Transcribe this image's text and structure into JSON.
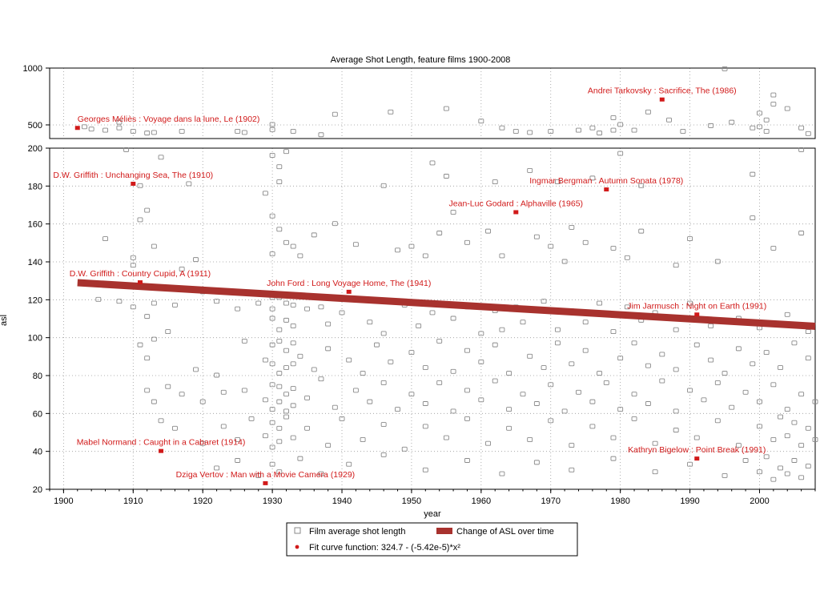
{
  "chart_data": {
    "type": "scatter",
    "title": "Average Shot Length, feature films 1900-2008",
    "xlabel": "year",
    "ylabel": "asl",
    "xlim": [
      1898,
      2008
    ],
    "panels": {
      "top": {
        "ylim": [
          380,
          1000
        ],
        "yticks": [
          500,
          1000
        ]
      },
      "bottom": {
        "ylim": [
          20,
          200
        ],
        "yticks": [
          20,
          40,
          60,
          80,
          100,
          120,
          140,
          160,
          180,
          200
        ]
      }
    },
    "xticks": [
      1900,
      1910,
      1920,
      1930,
      1940,
      1950,
      1960,
      1970,
      1980,
      1990,
      2000
    ],
    "grid": true,
    "colors": {
      "points": "#8a8a8a",
      "highlight": "#d11a1a",
      "trend": "#a8322e"
    },
    "trend_line": {
      "name": "Change of ASL over time",
      "points": [
        [
          1902,
          129
        ],
        [
          2008,
          106
        ]
      ]
    },
    "highlighted_films": [
      {
        "label": "Georges Méliès : Voyage dans la lune, Le (1902)",
        "year": 1902,
        "asl": 470
      },
      {
        "label": "D.W. Griffith : Unchanging Sea, The (1910)",
        "year": 1910,
        "asl": 181
      },
      {
        "label": "D.W. Griffith : Country Cupid, A (1911)",
        "year": 1911,
        "asl": 129
      },
      {
        "label": "Mabel Normand : Caught in a Cabaret (1914)",
        "year": 1914,
        "asl": 40
      },
      {
        "label": "Dziga Vertov : Man with a Movie Camera (1929)",
        "year": 1929,
        "asl": 23
      },
      {
        "label": "John Ford : Long Voyage Home, The (1941)",
        "year": 1941,
        "asl": 124
      },
      {
        "label": "Jean-Luc Godard : Alphaville (1965)",
        "year": 1965,
        "asl": 166
      },
      {
        "label": "Ingmar Bergman : Autumn Sonata (1978)",
        "year": 1978,
        "asl": 178
      },
      {
        "label": "Andrei Tarkovsky : Sacrifice, The (1986)",
        "year": 1986,
        "asl": 720
      },
      {
        "label": "Jim Jarmusch : Night on Earth (1991)",
        "year": 1991,
        "asl": 112
      },
      {
        "label": "Kathryn Bigelow : Point Break (1991)",
        "year": 1991,
        "asl": 36
      }
    ],
    "legend": {
      "position": "bottom",
      "items": [
        {
          "label": "Film average shot length",
          "marker": "square"
        },
        {
          "label": "Change of ASL over time",
          "marker": "bar"
        },
        {
          "label": "Fit curve function: 324.7 - (-5.42e-5)*x²",
          "marker": "dot"
        }
      ]
    },
    "scatter_points": [
      [
        1903,
        480
      ],
      [
        1904,
        460
      ],
      [
        1906,
        450
      ],
      [
        1908,
        470
      ],
      [
        1908,
        520
      ],
      [
        1910,
        440
      ],
      [
        1912,
        425
      ],
      [
        1913,
        430
      ],
      [
        1917,
        440
      ],
      [
        1925,
        440
      ],
      [
        1926,
        430
      ],
      [
        1930,
        500
      ],
      [
        1930,
        455
      ],
      [
        1933,
        440
      ],
      [
        1937,
        410
      ],
      [
        1939,
        590
      ],
      [
        1947,
        610
      ],
      [
        1955,
        640
      ],
      [
        1960,
        530
      ],
      [
        1963,
        470
      ],
      [
        1965,
        440
      ],
      [
        1967,
        430
      ],
      [
        1970,
        440
      ],
      [
        1974,
        450
      ],
      [
        1976,
        470
      ],
      [
        1977,
        425
      ],
      [
        1979,
        560
      ],
      [
        1979,
        450
      ],
      [
        1980,
        500
      ],
      [
        1982,
        450
      ],
      [
        1984,
        610
      ],
      [
        1987,
        540
      ],
      [
        1989,
        440
      ],
      [
        1993,
        490
      ],
      [
        1995,
        990
      ],
      [
        1996,
        520
      ],
      [
        1999,
        470
      ],
      [
        2000,
        480
      ],
      [
        2000,
        600
      ],
      [
        2001,
        440
      ],
      [
        2001,
        540
      ],
      [
        2002,
        760
      ],
      [
        2002,
        680
      ],
      [
        2004,
        640
      ],
      [
        2006,
        470
      ],
      [
        2007,
        420
      ],
      [
        1909,
        199
      ],
      [
        1911,
        180
      ],
      [
        1914,
        195
      ],
      [
        1918,
        181
      ],
      [
        1930,
        196
      ],
      [
        1931,
        190
      ],
      [
        1932,
        198
      ],
      [
        1931,
        182
      ],
      [
        1946,
        180
      ],
      [
        1953,
        192
      ],
      [
        1955,
        185
      ],
      [
        1962,
        182
      ],
      [
        1967,
        188
      ],
      [
        1971,
        182
      ],
      [
        1976,
        184
      ],
      [
        1980,
        197
      ],
      [
        1983,
        180
      ],
      [
        1999,
        186
      ],
      [
        2006,
        199
      ],
      [
        1906,
        152
      ],
      [
        1910,
        142
      ],
      [
        1910,
        138
      ],
      [
        1911,
        162
      ],
      [
        1912,
        167
      ],
      [
        1913,
        148
      ],
      [
        1917,
        136
      ],
      [
        1919,
        141
      ],
      [
        1929,
        176
      ],
      [
        1930,
        164
      ],
      [
        1930,
        144
      ],
      [
        1931,
        157
      ],
      [
        1932,
        150
      ],
      [
        1933,
        148
      ],
      [
        1934,
        143
      ],
      [
        1936,
        154
      ],
      [
        1939,
        160
      ],
      [
        1942,
        149
      ],
      [
        1948,
        146
      ],
      [
        1950,
        148
      ],
      [
        1952,
        143
      ],
      [
        1954,
        155
      ],
      [
        1956,
        166
      ],
      [
        1958,
        150
      ],
      [
        1961,
        156
      ],
      [
        1963,
        143
      ],
      [
        1968,
        153
      ],
      [
        1970,
        148
      ],
      [
        1972,
        140
      ],
      [
        1973,
        158
      ],
      [
        1975,
        150
      ],
      [
        1979,
        147
      ],
      [
        1981,
        142
      ],
      [
        1983,
        156
      ],
      [
        1988,
        138
      ],
      [
        1990,
        152
      ],
      [
        1994,
        140
      ],
      [
        1999,
        163
      ],
      [
        2002,
        147
      ],
      [
        2006,
        155
      ],
      [
        1905,
        120
      ],
      [
        1908,
        119
      ],
      [
        1910,
        116
      ],
      [
        1912,
        111
      ],
      [
        1913,
        118
      ],
      [
        1915,
        103
      ],
      [
        1916,
        117
      ],
      [
        1918,
        125
      ],
      [
        1920,
        124
      ],
      [
        1922,
        119
      ],
      [
        1925,
        115
      ],
      [
        1928,
        118
      ],
      [
        1930,
        121
      ],
      [
        1930,
        115
      ],
      [
        1930,
        110
      ],
      [
        1931,
        121
      ],
      [
        1931,
        104
      ],
      [
        1932,
        118
      ],
      [
        1932,
        109
      ],
      [
        1933,
        117
      ],
      [
        1933,
        106
      ],
      [
        1935,
        115
      ],
      [
        1937,
        116
      ],
      [
        1938,
        107
      ],
      [
        1940,
        113
      ],
      [
        1944,
        108
      ],
      [
        1946,
        102
      ],
      [
        1949,
        117
      ],
      [
        1951,
        106
      ],
      [
        1953,
        113
      ],
      [
        1956,
        110
      ],
      [
        1958,
        116
      ],
      [
        1960,
        102
      ],
      [
        1962,
        114
      ],
      [
        1963,
        104
      ],
      [
        1965,
        116
      ],
      [
        1966,
        108
      ],
      [
        1969,
        119
      ],
      [
        1971,
        104
      ],
      [
        1973,
        114
      ],
      [
        1975,
        108
      ],
      [
        1977,
        118
      ],
      [
        1979,
        103
      ],
      [
        1981,
        116
      ],
      [
        1983,
        109
      ],
      [
        1985,
        113
      ],
      [
        1988,
        104
      ],
      [
        1990,
        118
      ],
      [
        1993,
        106
      ],
      [
        1997,
        110
      ],
      [
        2000,
        105
      ],
      [
        2004,
        112
      ],
      [
        2007,
        103
      ],
      [
        1911,
        96
      ],
      [
        1912,
        89
      ],
      [
        1913,
        99
      ],
      [
        1919,
        83
      ],
      [
        1922,
        80
      ],
      [
        1926,
        98
      ],
      [
        1929,
        88
      ],
      [
        1930,
        96
      ],
      [
        1930,
        86
      ],
      [
        1931,
        98
      ],
      [
        1931,
        81
      ],
      [
        1932,
        93
      ],
      [
        1932,
        84
      ],
      [
        1933,
        97
      ],
      [
        1933,
        86
      ],
      [
        1934,
        90
      ],
      [
        1936,
        83
      ],
      [
        1938,
        94
      ],
      [
        1941,
        88
      ],
      [
        1943,
        81
      ],
      [
        1945,
        96
      ],
      [
        1947,
        87
      ],
      [
        1950,
        92
      ],
      [
        1952,
        84
      ],
      [
        1954,
        98
      ],
      [
        1956,
        82
      ],
      [
        1958,
        93
      ],
      [
        1960,
        87
      ],
      [
        1962,
        96
      ],
      [
        1964,
        81
      ],
      [
        1967,
        90
      ],
      [
        1969,
        84
      ],
      [
        1971,
        97
      ],
      [
        1973,
        86
      ],
      [
        1975,
        93
      ],
      [
        1977,
        81
      ],
      [
        1980,
        89
      ],
      [
        1982,
        97
      ],
      [
        1984,
        85
      ],
      [
        1986,
        91
      ],
      [
        1988,
        83
      ],
      [
        1991,
        96
      ],
      [
        1993,
        88
      ],
      [
        1995,
        81
      ],
      [
        1997,
        94
      ],
      [
        1999,
        86
      ],
      [
        2001,
        92
      ],
      [
        2003,
        84
      ],
      [
        2005,
        97
      ],
      [
        2007,
        89
      ],
      [
        1912,
        72
      ],
      [
        1913,
        66
      ],
      [
        1915,
        74
      ],
      [
        1917,
        70
      ],
      [
        1920,
        66
      ],
      [
        1923,
        71
      ],
      [
        1926,
        72
      ],
      [
        1929,
        67
      ],
      [
        1930,
        75
      ],
      [
        1930,
        62
      ],
      [
        1931,
        74
      ],
      [
        1931,
        66
      ],
      [
        1932,
        70
      ],
      [
        1932,
        61
      ],
      [
        1933,
        73
      ],
      [
        1933,
        64
      ],
      [
        1935,
        68
      ],
      [
        1937,
        78
      ],
      [
        1939,
        63
      ],
      [
        1942,
        72
      ],
      [
        1944,
        66
      ],
      [
        1946,
        76
      ],
      [
        1948,
        62
      ],
      [
        1950,
        70
      ],
      [
        1952,
        65
      ],
      [
        1954,
        76
      ],
      [
        1956,
        61
      ],
      [
        1958,
        72
      ],
      [
        1960,
        67
      ],
      [
        1962,
        77
      ],
      [
        1964,
        62
      ],
      [
        1966,
        70
      ],
      [
        1968,
        65
      ],
      [
        1970,
        75
      ],
      [
        1972,
        61
      ],
      [
        1974,
        71
      ],
      [
        1976,
        66
      ],
      [
        1978,
        76
      ],
      [
        1980,
        62
      ],
      [
        1982,
        70
      ],
      [
        1984,
        65
      ],
      [
        1986,
        77
      ],
      [
        1988,
        61
      ],
      [
        1990,
        72
      ],
      [
        1992,
        67
      ],
      [
        1994,
        76
      ],
      [
        1996,
        63
      ],
      [
        1998,
        71
      ],
      [
        2000,
        66
      ],
      [
        2002,
        75
      ],
      [
        2004,
        62
      ],
      [
        2006,
        70
      ],
      [
        2008,
        66
      ],
      [
        1914,
        56
      ],
      [
        1916,
        52
      ],
      [
        1920,
        44
      ],
      [
        1923,
        53
      ],
      [
        1925,
        46
      ],
      [
        1927,
        57
      ],
      [
        1929,
        48
      ],
      [
        1930,
        55
      ],
      [
        1930,
        42
      ],
      [
        1931,
        52
      ],
      [
        1931,
        45
      ],
      [
        1932,
        58
      ],
      [
        1933,
        47
      ],
      [
        1935,
        52
      ],
      [
        1938,
        43
      ],
      [
        1940,
        57
      ],
      [
        1943,
        46
      ],
      [
        1946,
        54
      ],
      [
        1949,
        41
      ],
      [
        1952,
        53
      ],
      [
        1955,
        47
      ],
      [
        1958,
        57
      ],
      [
        1961,
        44
      ],
      [
        1964,
        52
      ],
      [
        1967,
        46
      ],
      [
        1970,
        56
      ],
      [
        1973,
        43
      ],
      [
        1976,
        53
      ],
      [
        1979,
        47
      ],
      [
        1982,
        57
      ],
      [
        1985,
        44
      ],
      [
        1988,
        51
      ],
      [
        1991,
        47
      ],
      [
        1994,
        56
      ],
      [
        1997,
        43
      ],
      [
        2000,
        53
      ],
      [
        2002,
        46
      ],
      [
        2003,
        58
      ],
      [
        2004,
        48
      ],
      [
        2005,
        55
      ],
      [
        2006,
        43
      ],
      [
        2007,
        52
      ],
      [
        2008,
        46
      ],
      [
        1922,
        31
      ],
      [
        1925,
        35
      ],
      [
        1928,
        27
      ],
      [
        1930,
        33
      ],
      [
        1931,
        29
      ],
      [
        1934,
        36
      ],
      [
        1937,
        28
      ],
      [
        1941,
        33
      ],
      [
        1946,
        38
      ],
      [
        1952,
        30
      ],
      [
        1958,
        35
      ],
      [
        1963,
        28
      ],
      [
        1968,
        34
      ],
      [
        1973,
        30
      ],
      [
        1979,
        36
      ],
      [
        1985,
        29
      ],
      [
        1990,
        33
      ],
      [
        1995,
        27
      ],
      [
        1998,
        35
      ],
      [
        2000,
        29
      ],
      [
        2001,
        37
      ],
      [
        2002,
        25
      ],
      [
        2003,
        31
      ],
      [
        2004,
        28
      ],
      [
        2005,
        35
      ],
      [
        2006,
        26
      ],
      [
        2007,
        32
      ]
    ]
  }
}
